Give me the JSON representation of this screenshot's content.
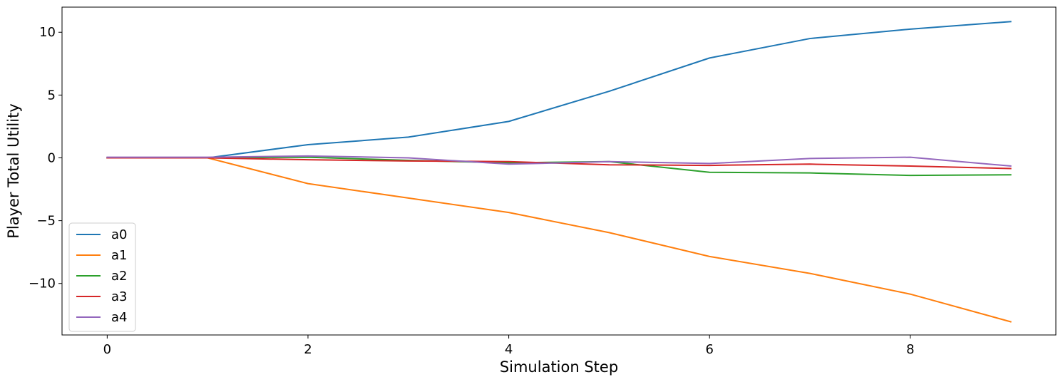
{
  "chart_data": {
    "type": "line",
    "xlabel": "Simulation Step",
    "ylabel": "Player Total Utility",
    "xlim": [
      -0.45,
      9.45
    ],
    "ylim": [
      -14.1,
      12.0
    ],
    "x": [
      0,
      1,
      2,
      3,
      4,
      5,
      6,
      7,
      8,
      9
    ],
    "xticks": [
      0,
      2,
      4,
      6,
      8
    ],
    "yticks": [
      10,
      5,
      0,
      -5,
      -10
    ],
    "ytick_labels": [
      "10",
      "5",
      "0",
      "−5",
      "−10"
    ],
    "grid": false,
    "legend_position": "lower-left",
    "series": [
      {
        "name": "a0",
        "color": "#1f77b4",
        "values": [
          0.0,
          0.0,
          1.05,
          1.65,
          2.9,
          5.3,
          7.95,
          9.5,
          10.25,
          10.85
        ]
      },
      {
        "name": "a1",
        "color": "#ff7f0e",
        "values": [
          0.0,
          0.0,
          -2.05,
          -3.2,
          -4.35,
          -5.95,
          -7.85,
          -9.2,
          -10.85,
          -13.05
        ]
      },
      {
        "name": "a2",
        "color": "#2ca02c",
        "values": [
          0.0,
          0.0,
          0.05,
          -0.2,
          -0.4,
          -0.3,
          -1.15,
          -1.2,
          -1.4,
          -1.35
        ]
      },
      {
        "name": "a3",
        "color": "#d62728",
        "values": [
          0.0,
          0.0,
          -0.15,
          -0.25,
          -0.3,
          -0.55,
          -0.6,
          -0.5,
          -0.65,
          -0.85
        ]
      },
      {
        "name": "a4",
        "color": "#9467bd",
        "values": [
          0.05,
          0.05,
          0.15,
          0.0,
          -0.5,
          -0.3,
          -0.45,
          -0.05,
          0.05,
          -0.65
        ]
      }
    ]
  }
}
